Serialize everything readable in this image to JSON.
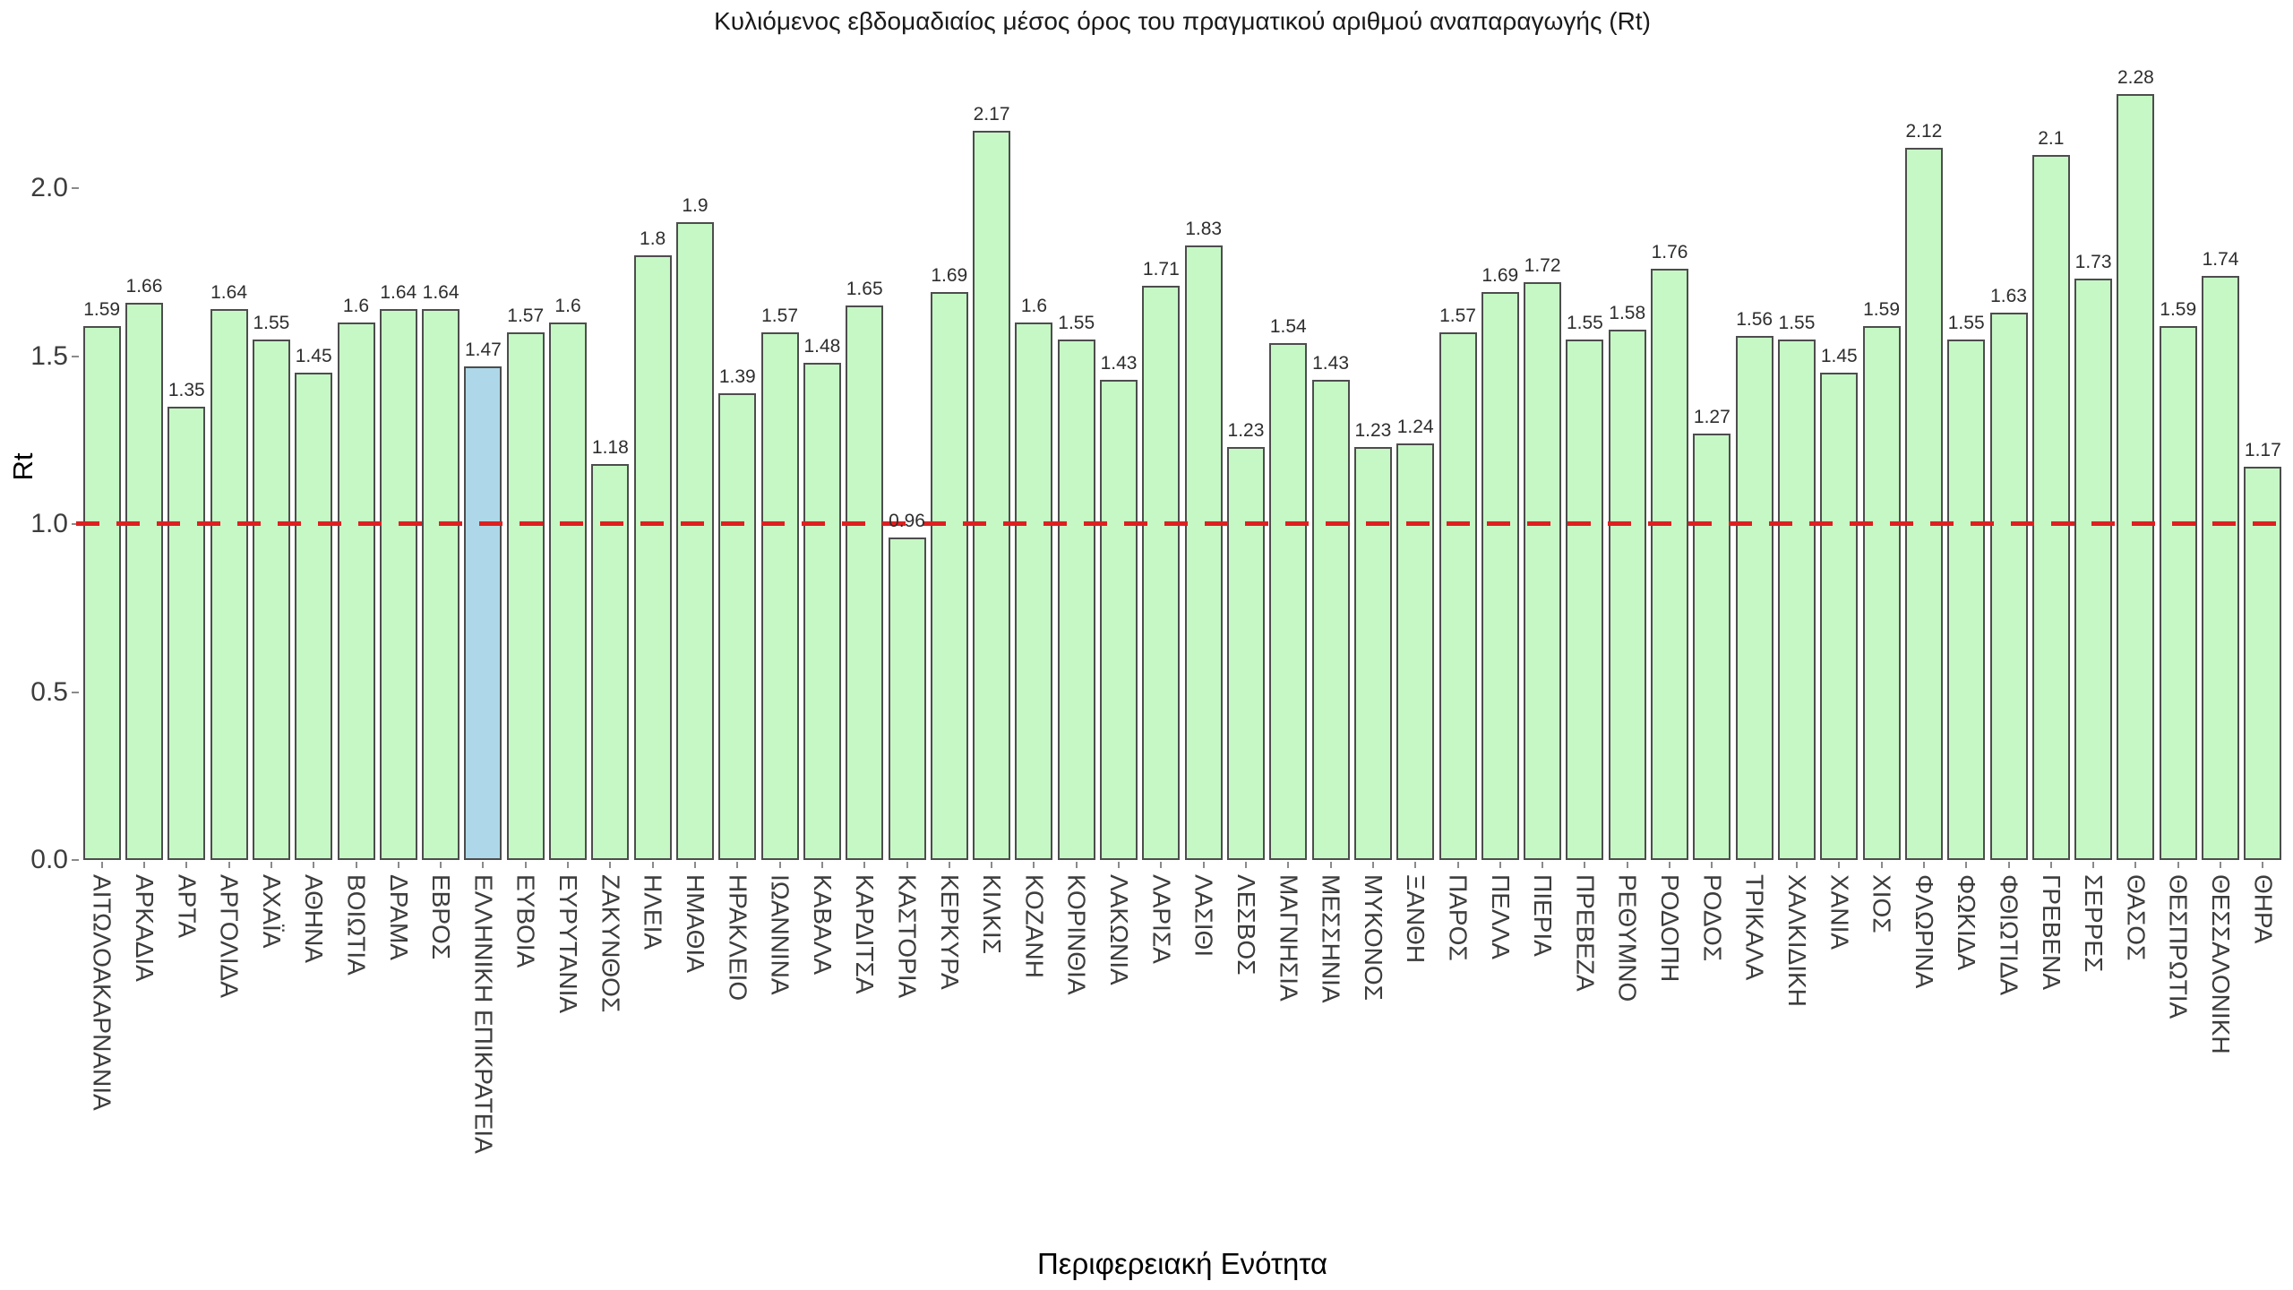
{
  "chart_data": {
    "type": "bar",
    "title": "Κυλιόμενος εβδομαδιαίος μέσος όρος του πραγματικού αριθμού αναπαραγωγής (Rt)",
    "xlabel": "Περιφερειακή Ενότητα",
    "ylabel": "Rt",
    "categories": [
      "ΑΙΤΩΛΟΑΚΑΡΝΑΝΙΑ",
      "ΑΡΚΑΔΙΑ",
      "ΑΡΤΑ",
      "ΑΡΓΟΛΙΔΑ",
      "ΑΧΑΪΑ",
      "ΑΘΗΝΑ",
      "ΒΟΙΩΤΙΑ",
      "ΔΡΑΜΑ",
      "ΕΒΡΟΣ",
      "ΕΛΛΗΝΙΚΗ ΕΠΙΚΡΑΤΕΙΑ",
      "ΕΥΒΟΙΑ",
      "ΕΥΡΥΤΑΝΙΑ",
      "ΖΑΚΥΝΘΟΣ",
      "ΗΛΕΙΑ",
      "ΗΜΑΘΙΑ",
      "ΗΡΑΚΛΕΙΟ",
      "ΙΩΑΝΝΙΝΑ",
      "ΚΑΒΑΛΑ",
      "ΚΑΡΔΙΤΣΑ",
      "ΚΑΣΤΟΡΙΑ",
      "ΚΕΡΚΥΡΑ",
      "ΚΙΛΚΙΣ",
      "ΚΟΖΑΝΗ",
      "ΚΟΡΙΝΘΙΑ",
      "ΛΑΚΩΝΙΑ",
      "ΛΑΡΙΣΑ",
      "ΛΑΣΙΘΙ",
      "ΛΕΣΒΟΣ",
      "ΜΑΓΝΗΣΙΑ",
      "ΜΕΣΣΗΝΙΑ",
      "ΜΥΚΟΝΟΣ",
      "ΞΑΝΘΗ",
      "ΠΑΡΟΣ",
      "ΠΕΛΛΑ",
      "ΠΙΕΡΙΑ",
      "ΠΡΕΒΕΖΑ",
      "ΡΕΘΥΜΝΟ",
      "ΡΟΔΟΠΗ",
      "ΡΟΔΟΣ",
      "ΤΡΙΚΑΛΑ",
      "ΧΑΛΚΙΔΙΚΗ",
      "ΧΑΝΙΑ",
      "ΧΙΟΣ",
      "ΦΛΩΡΙΝΑ",
      "ΦΩΚΙΔΑ",
      "ΦΘΙΩΤΙΔΑ",
      "ΓΡΕΒΕΝΑ",
      "ΣΕΡΡΕΣ",
      "ΘΑΣΟΣ",
      "ΘΕΣΠΡΩΤΙΑ",
      "ΘΕΣΣΑΛΟΝΙΚΗ",
      "ΘΗΡΑ"
    ],
    "values": [
      1.59,
      1.66,
      1.35,
      1.64,
      1.55,
      1.45,
      1.6,
      1.64,
      1.64,
      1.47,
      1.57,
      1.6,
      1.18,
      1.8,
      1.9,
      1.39,
      1.57,
      1.48,
      1.65,
      0.96,
      1.69,
      2.17,
      1.6,
      1.55,
      1.43,
      1.71,
      1.83,
      1.23,
      1.54,
      1.43,
      1.23,
      1.24,
      1.57,
      1.69,
      1.72,
      1.55,
      1.58,
      1.76,
      1.27,
      1.56,
      1.55,
      1.45,
      1.59,
      2.12,
      1.55,
      1.63,
      2.1,
      1.73,
      2.28,
      1.59,
      1.74,
      1.17
    ],
    "highlight_category": "ΕΛΛΗΝΙΚΗ ΕΠΙΚΡΑΤΕΙΑ",
    "highlight_index": 9,
    "bar_color": "#c6f8c5",
    "highlight_bar_color": "#aed8e9",
    "bar_border_color": "#4d4d4d",
    "reference_line_y": 1.0,
    "reference_line_color": "#dd2020",
    "reference_line_style": "dashed",
    "yticks": [
      0.0,
      0.5,
      1.0,
      1.5,
      2.0
    ],
    "ylim": [
      0.0,
      2.45
    ],
    "grid": false,
    "legend_position": "none",
    "value_labels_shown": true
  }
}
